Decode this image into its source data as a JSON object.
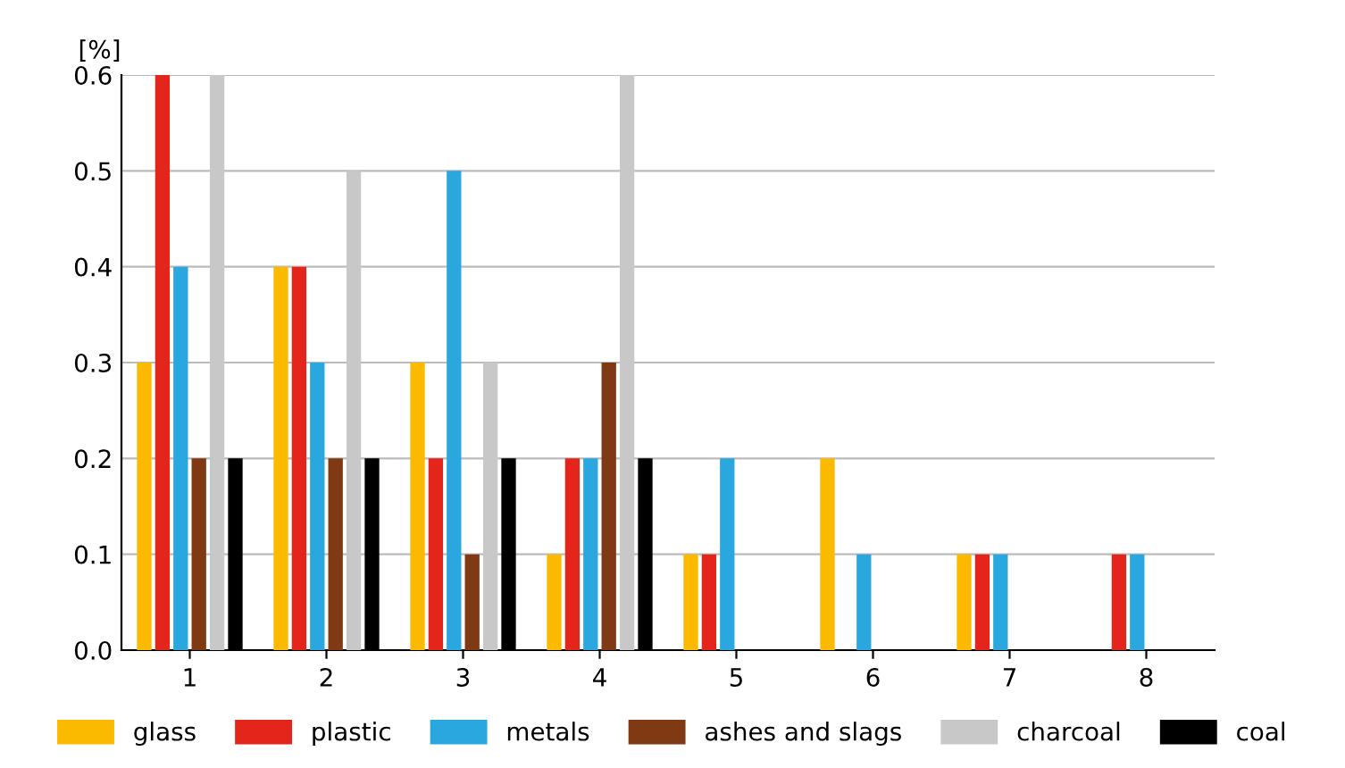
{
  "chart_data": {
    "type": "bar",
    "ylabel": "[%]",
    "categories": [
      "1",
      "2",
      "3",
      "4",
      "5",
      "6",
      "7",
      "8"
    ],
    "series": [
      {
        "name": "glass",
        "color": "#fbb900",
        "values": [
          0.3,
          0.4,
          0.3,
          0.1,
          0.1,
          0.2,
          0.1,
          0
        ]
      },
      {
        "name": "plastic",
        "color": "#e3251b",
        "values": [
          0.6,
          0.4,
          0.2,
          0.2,
          0.1,
          0,
          0.1,
          0.1
        ]
      },
      {
        "name": "metals",
        "color": "#2aa7df",
        "values": [
          0.4,
          0.3,
          0.5,
          0.2,
          0.2,
          0.1,
          0.1,
          0.1
        ]
      },
      {
        "name": "ashes and slags",
        "color": "#7f3a14",
        "values": [
          0.2,
          0.2,
          0.1,
          0.3,
          0,
          0,
          0,
          0
        ]
      },
      {
        "name": "charcoal",
        "color": "#c8c8c8",
        "values": [
          0.6,
          0.5,
          0.3,
          0.6,
          0,
          0,
          0,
          0
        ]
      },
      {
        "name": "coal",
        "color": "#000000",
        "values": [
          0.2,
          0.2,
          0.2,
          0.2,
          0,
          0,
          0,
          0
        ]
      }
    ],
    "ylim": [
      0,
      0.6
    ],
    "yticks": [
      {
        "value": 0,
        "label": "0.0"
      },
      0.1,
      0.2,
      0.3,
      0.4,
      0.5,
      0.6
    ],
    "grid": "y",
    "legend": "bottom"
  }
}
